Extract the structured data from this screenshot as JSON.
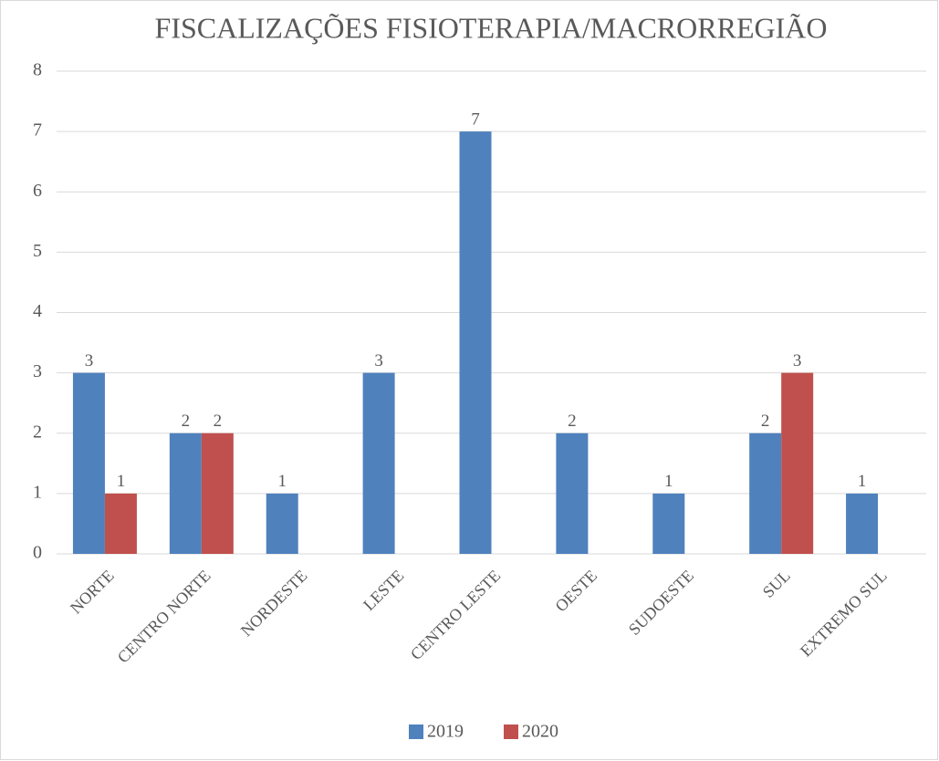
{
  "chart_data": {
    "type": "bar",
    "title": "FISCALIZAÇÕES FISIOTERAPIA/MACRORREGIÃO",
    "categories": [
      "NORTE",
      "CENTRO NORTE",
      "NORDESTE",
      "LESTE",
      "CENTRO LESTE",
      "OESTE",
      "SUDOESTE",
      "SUL",
      "EXTREMO SUL"
    ],
    "series": [
      {
        "name": "2019",
        "color": "#4f81bd",
        "values": [
          3,
          2,
          1,
          3,
          7,
          2,
          1,
          2,
          1
        ]
      },
      {
        "name": "2020",
        "color": "#c0504d",
        "values": [
          1,
          2,
          null,
          null,
          null,
          null,
          null,
          3,
          null
        ]
      }
    ],
    "ylim": [
      0,
      8
    ],
    "yticks": [
      0,
      1,
      2,
      3,
      4,
      5,
      6,
      7,
      8
    ],
    "grid": true,
    "legend": "bottom"
  }
}
